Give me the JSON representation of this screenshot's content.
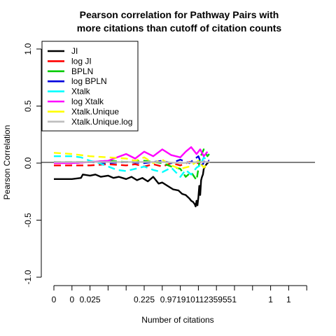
{
  "chart_data": {
    "type": "line",
    "title_lines": [
      "Pearson correlation for Pathway Pairs with",
      "more citations than cutoff of citation counts"
    ],
    "xlabel": "Number of citations",
    "ylabel": "Pearson Correlation",
    "ylim": [
      -1.0,
      1.0
    ],
    "y_ticks": [
      "-1.0",
      "-0.5",
      "0.0",
      "0.5",
      "1.0"
    ],
    "y_tick_values": [
      -1.0,
      -0.5,
      0.0,
      0.5,
      1.0
    ],
    "x_tick_labels": [
      "0",
      "0",
      "0.025",
      "0.225",
      "0.971910112359551",
      "1",
      "1"
    ],
    "x_tick_label_at": [
      0,
      1,
      2,
      5,
      8,
      12,
      13
    ],
    "x_tick_count": 15,
    "hline": 0,
    "legend_position": "top-left",
    "series": [
      {
        "name": "JI",
        "color": "#000000",
        "dash": "solid",
        "x": [
          0,
          1,
          1.5,
          1.6,
          2,
          2.3,
          2.6,
          3,
          3.3,
          3.6,
          4,
          4.3,
          4.6,
          4.9,
          5.2,
          5.5,
          5.8,
          6,
          6.3,
          6.6,
          6.9,
          7.1,
          7.3,
          7.5,
          7.6,
          7.7,
          7.8,
          7.85,
          7.9,
          7.95,
          8,
          8.05,
          8.1,
          8.15,
          8.2,
          8.25,
          8.3,
          8.4,
          8.5,
          8.6
        ],
        "y": [
          -0.14,
          -0.14,
          -0.13,
          -0.1,
          -0.11,
          -0.1,
          -0.12,
          -0.11,
          -0.13,
          -0.12,
          -0.14,
          -0.12,
          -0.15,
          -0.13,
          -0.16,
          -0.12,
          -0.18,
          -0.17,
          -0.2,
          -0.23,
          -0.24,
          -0.27,
          -0.28,
          -0.31,
          -0.33,
          -0.34,
          -0.36,
          -0.38,
          -0.33,
          -0.37,
          -0.3,
          -0.2,
          -0.28,
          -0.15,
          -0.12,
          -0.1,
          -0.05,
          -0.02,
          0.0,
          0.01
        ]
      },
      {
        "name": "log JI",
        "color": "#ff0000",
        "dash": "dashed",
        "x": [
          0,
          1,
          2,
          3,
          4,
          4.5,
          5,
          5.5,
          6,
          6.5,
          7,
          7.5,
          8,
          8.3,
          8.6
        ],
        "y": [
          -0.02,
          -0.02,
          -0.02,
          -0.01,
          -0.02,
          -0.01,
          -0.03,
          -0.01,
          -0.03,
          0.0,
          -0.02,
          0.01,
          0.0,
          0.02,
          0.01
        ]
      },
      {
        "name": "BPLN",
        "color": "#00cc00",
        "dash": "dashed",
        "x": [
          0,
          1,
          2,
          3,
          4,
          5,
          6,
          6.5,
          7,
          7.3,
          7.6,
          7.9,
          8.1,
          8.3,
          8.5,
          8.6
        ],
        "y": [
          0.01,
          0.01,
          0.01,
          0.02,
          0.01,
          0.02,
          0.0,
          -0.03,
          -0.05,
          -0.12,
          -0.08,
          -0.15,
          0.05,
          0.12,
          0.06,
          0.08
        ]
      },
      {
        "name": "log BPLN",
        "color": "#0000dd",
        "dash": "dashed",
        "x": [
          0,
          1,
          2,
          3,
          4,
          5,
          6,
          6.5,
          7,
          7.5,
          8,
          8.2,
          8.4,
          8.6
        ],
        "y": [
          0.01,
          0.0,
          0.01,
          0.0,
          0.01,
          0.0,
          0.02,
          0.0,
          0.03,
          0.0,
          0.06,
          -0.02,
          0.03,
          0.02
        ]
      },
      {
        "name": "Xtalk",
        "color": "#00ffff",
        "dash": "dashed",
        "x": [
          0,
          1,
          1.5,
          2,
          2.5,
          3,
          3.5,
          4,
          4.5,
          5,
          5.5,
          6,
          6.5,
          7,
          7.3,
          7.6,
          7.9,
          8.1,
          8.3,
          8.5
        ],
        "y": [
          0.06,
          0.06,
          0.05,
          0.02,
          0.0,
          -0.03,
          -0.06,
          -0.07,
          -0.05,
          -0.03,
          -0.06,
          -0.08,
          -0.04,
          -0.12,
          -0.06,
          -0.1,
          -0.04,
          -0.02,
          0.05,
          0.02
        ]
      },
      {
        "name": "log Xtalk",
        "color": "#ff00ff",
        "dash": "solid",
        "x": [
          0,
          1,
          2,
          3,
          3.5,
          4,
          4.5,
          5,
          5.5,
          6,
          6.5,
          7,
          7.3,
          7.6,
          7.9,
          8.1,
          8.3,
          8.5
        ],
        "y": [
          0.0,
          0.0,
          0.01,
          0.02,
          0.05,
          0.08,
          0.04,
          0.1,
          0.06,
          0.12,
          0.07,
          0.05,
          0.1,
          0.14,
          0.08,
          0.12,
          0.06,
          0.1
        ]
      },
      {
        "name": "Xtalk.Unique",
        "color": "#ffff00",
        "dash": "dashed",
        "x": [
          0,
          1,
          2,
          3,
          4,
          4.5,
          5,
          5.5,
          6,
          6.5,
          7,
          7.5,
          8,
          8.3,
          8.6
        ],
        "y": [
          0.09,
          0.08,
          0.06,
          0.05,
          0.04,
          0.02,
          0.05,
          0.0,
          0.03,
          -0.02,
          -0.05,
          -0.03,
          0.02,
          -0.04,
          0.01
        ]
      },
      {
        "name": "Xtalk.Unique.log",
        "color": "#bebebe",
        "dash": "solid",
        "x": [
          0,
          1,
          2,
          3,
          4,
          5,
          6,
          7,
          8,
          8.6
        ],
        "y": [
          0.01,
          0.01,
          0.01,
          0.01,
          0.01,
          0.01,
          0.01,
          0.0,
          0.01,
          0.01
        ]
      }
    ]
  }
}
